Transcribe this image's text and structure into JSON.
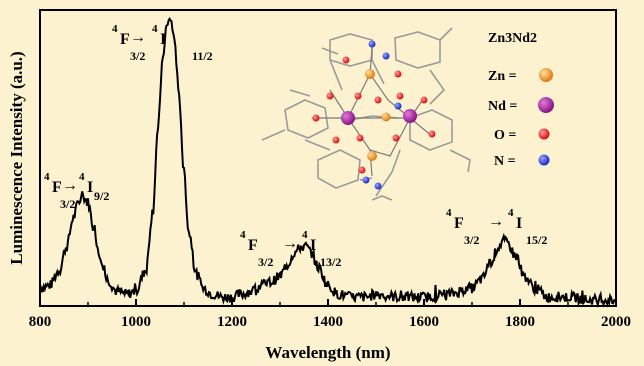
{
  "chart_data": {
    "type": "line",
    "title": "",
    "xlabel": "Wavelength (nm)",
    "ylabel": "Luminescence Intensity (a.u.)",
    "xlim": [
      800,
      2000
    ],
    "ylim": [
      0,
      1
    ],
    "x_ticks": [
      "800",
      "1000",
      "1200",
      "1400",
      "1600",
      "1800",
      "2000"
    ],
    "grid": false,
    "series": [
      {
        "x": [
          800,
          820,
          840,
          855,
          870,
          880,
          890,
          900,
          910,
          925,
          940,
          960,
          980,
          1000,
          1020,
          1035,
          1045,
          1055,
          1063,
          1072,
          1080,
          1090,
          1100,
          1110,
          1125,
          1140,
          1160,
          1180,
          1200,
          1220,
          1240,
          1260,
          1280,
          1300,
          1315,
          1330,
          1345,
          1355,
          1365,
          1380,
          1400,
          1420,
          1450,
          1480,
          1500,
          1550,
          1600,
          1650,
          1700,
          1720,
          1740,
          1755,
          1765,
          1775,
          1790,
          1810,
          1830,
          1860,
          1900,
          1950,
          2000
        ],
        "values": [
          0.06,
          0.07,
          0.12,
          0.2,
          0.3,
          0.35,
          0.37,
          0.35,
          0.28,
          0.17,
          0.09,
          0.05,
          0.04,
          0.05,
          0.12,
          0.32,
          0.58,
          0.82,
          0.94,
          0.97,
          0.9,
          0.7,
          0.45,
          0.25,
          0.11,
          0.06,
          0.04,
          0.03,
          0.03,
          0.04,
          0.05,
          0.07,
          0.08,
          0.1,
          0.14,
          0.18,
          0.2,
          0.2,
          0.18,
          0.13,
          0.07,
          0.04,
          0.03,
          0.03,
          0.04,
          0.03,
          0.03,
          0.04,
          0.06,
          0.09,
          0.15,
          0.2,
          0.22,
          0.21,
          0.17,
          0.1,
          0.06,
          0.03,
          0.03,
          0.02,
          0.02
        ]
      }
    ],
    "annotations": [
      {
        "pre": "4",
        "main": "F",
        "sub": "3/2",
        "arrow": "→",
        "pre2": "4",
        "main2": "I",
        "sub2": "9/2"
      },
      {
        "pre": "4",
        "main": "F",
        "sub": "3/2",
        "arrow": "→",
        "pre2": "4",
        "main2": "I",
        "sub2": "11/2"
      },
      {
        "pre": "4",
        "main": "F",
        "sub": "3/2",
        "arrow": "→",
        "pre2": "4",
        "main2": "I",
        "sub2": "13/2"
      },
      {
        "pre": "4",
        "main": "F",
        "sub": "3/2",
        "arrow": "→",
        "pre2": "4",
        "main2": "I",
        "sub2": "15/2"
      }
    ],
    "line_color": "#000000"
  },
  "inset": {
    "formula": "Zn3Nd2",
    "legend": [
      {
        "label": "Zn =",
        "color": "#f08c1e",
        "icon": "orange-sphere"
      },
      {
        "label": "Nd =",
        "color": "#a0209a",
        "icon": "purple-sphere"
      },
      {
        "label": "O =",
        "color": "#e81818",
        "icon": "red-sphere"
      },
      {
        "label": "N =",
        "color": "#2436d8",
        "icon": "blue-sphere"
      }
    ]
  }
}
